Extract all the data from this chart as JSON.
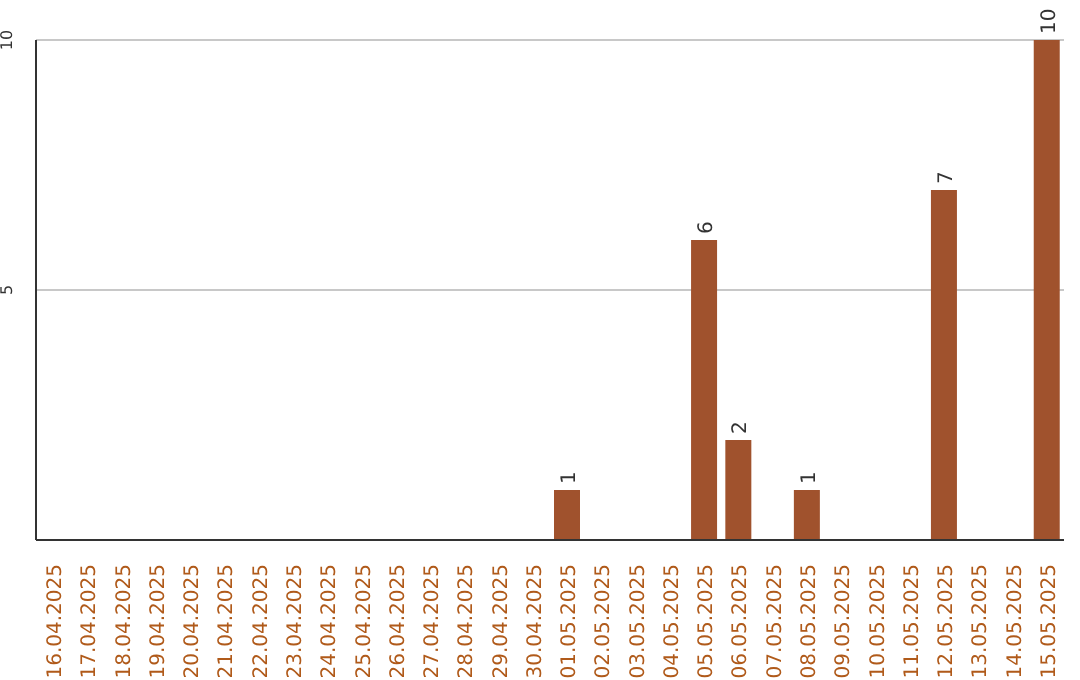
{
  "chart_data": {
    "type": "bar",
    "categories": [
      "16.04.2025",
      "17.04.2025",
      "18.04.2025",
      "19.04.2025",
      "20.04.2025",
      "21.04.2025",
      "22.04.2025",
      "23.04.2025",
      "24.04.2025",
      "25.04.2025",
      "26.04.2025",
      "27.04.2025",
      "28.04.2025",
      "29.04.2025",
      "30.04.2025",
      "01.05.2025",
      "02.05.2025",
      "03.05.2025",
      "04.05.2025",
      "05.05.2025",
      "06.05.2025",
      "07.05.2025",
      "08.05.2025",
      "09.05.2025",
      "10.05.2025",
      "11.05.2025",
      "12.05.2025",
      "13.05.2025",
      "14.05.2025",
      "15.05.2025"
    ],
    "values": [
      0,
      0,
      0,
      0,
      0,
      0,
      0,
      0,
      0,
      0,
      0,
      0,
      0,
      0,
      0,
      1,
      0,
      0,
      0,
      6,
      2,
      0,
      1,
      0,
      0,
      0,
      7,
      0,
      0,
      10
    ],
    "value_labels": [
      null,
      null,
      null,
      null,
      null,
      null,
      null,
      null,
      null,
      null,
      null,
      null,
      null,
      null,
      null,
      "1",
      null,
      null,
      null,
      "6",
      "2",
      null,
      "1",
      null,
      null,
      null,
      "7",
      null,
      null,
      "10"
    ],
    "color": "#a0522d",
    "ylim": [
      0,
      10
    ],
    "yticks": [
      5,
      10
    ],
    "grid": "y"
  }
}
